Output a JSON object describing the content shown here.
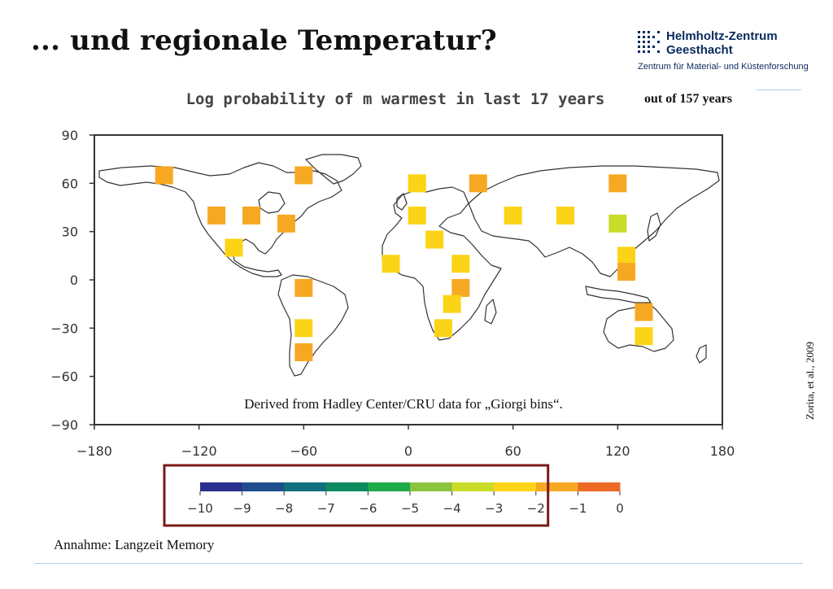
{
  "slide": {
    "title": "... und regionale Temperatur?",
    "caption": "Annahme: Langzeit Memory",
    "citation": "Zorita, et al., 2009"
  },
  "logo": {
    "name_line1": "Helmholtz-Zentrum",
    "name_line2": "Geesthacht",
    "subtitle": "Zentrum für Material- und Küstenforschung",
    "color": "#0a2a5c"
  },
  "chart_data": {
    "type": "scatter",
    "title": "Log probability of m warmest in last 17 years",
    "title_addendum": "out of 157 years",
    "annotation": "Derived from Hadley Center/CRU data for „Giorgi bins“.",
    "xlim": [
      -180,
      180
    ],
    "ylim": [
      -90,
      90
    ],
    "xticks": [
      -180,
      -120,
      -60,
      0,
      60,
      120,
      180
    ],
    "xtick_labels": [
      "−180",
      "−120",
      "−60",
      "0",
      "60",
      "120",
      "180"
    ],
    "yticks": [
      90,
      60,
      30,
      0,
      -30,
      -60,
      -90
    ],
    "ytick_labels": [
      "90",
      "60",
      "30",
      "0",
      "−30",
      "−60",
      "−90"
    ],
    "colorbar": {
      "ticks": [
        -10,
        -9,
        -8,
        -7,
        -6,
        -5,
        -4,
        -3,
        -2,
        -1,
        0
      ],
      "tick_labels": [
        "−10",
        "−9",
        "−8",
        "−7",
        "−6",
        "−5",
        "−4",
        "−3",
        "−2",
        "−1",
        "0"
      ],
      "colors": [
        "#2b2f8f",
        "#1e4f8c",
        "#12707d",
        "#0d8b5e",
        "#1faa4a",
        "#8bc53f",
        "#c9dc2a",
        "#fbd417",
        "#f7a823",
        "#ec6a24"
      ],
      "highlight_range": [
        -10,
        -1.75
      ],
      "highlight_color": "#7a1a1a"
    },
    "points": [
      {
        "lon": -140,
        "lat": 65,
        "value": -1.5
      },
      {
        "lon": -60,
        "lat": 65,
        "value": -1.5
      },
      {
        "lon": -110,
        "lat": 40,
        "value": -1.5
      },
      {
        "lon": -90,
        "lat": 40,
        "value": -1.5
      },
      {
        "lon": -70,
        "lat": 35,
        "value": -1.5
      },
      {
        "lon": -100,
        "lat": 20,
        "value": -2.5
      },
      {
        "lon": 5,
        "lat": 60,
        "value": -2.5
      },
      {
        "lon": 40,
        "lat": 60,
        "value": -1.5
      },
      {
        "lon": 5,
        "lat": 40,
        "value": -2.5
      },
      {
        "lon": 15,
        "lat": 25,
        "value": -2.5
      },
      {
        "lon": -10,
        "lat": 10,
        "value": -2.5
      },
      {
        "lon": 30,
        "lat": 10,
        "value": -2.5
      },
      {
        "lon": 30,
        "lat": -5,
        "value": -1.5
      },
      {
        "lon": 25,
        "lat": -15,
        "value": -2.5
      },
      {
        "lon": 20,
        "lat": -30,
        "value": -2.5
      },
      {
        "lon": -60,
        "lat": -5,
        "value": -1.5
      },
      {
        "lon": -60,
        "lat": -30,
        "value": -2.5
      },
      {
        "lon": -60,
        "lat": -45,
        "value": -1.5
      },
      {
        "lon": 60,
        "lat": 40,
        "value": -2.5
      },
      {
        "lon": 90,
        "lat": 40,
        "value": -2.5
      },
      {
        "lon": 120,
        "lat": 60,
        "value": -1.5
      },
      {
        "lon": 120,
        "lat": 35,
        "value": -3.5
      },
      {
        "lon": 125,
        "lat": 15,
        "value": -2.5
      },
      {
        "lon": 125,
        "lat": 5,
        "value": -1.5
      },
      {
        "lon": 135,
        "lat": -20,
        "value": -1.5
      },
      {
        "lon": 135,
        "lat": -35,
        "value": -2.5
      }
    ]
  }
}
